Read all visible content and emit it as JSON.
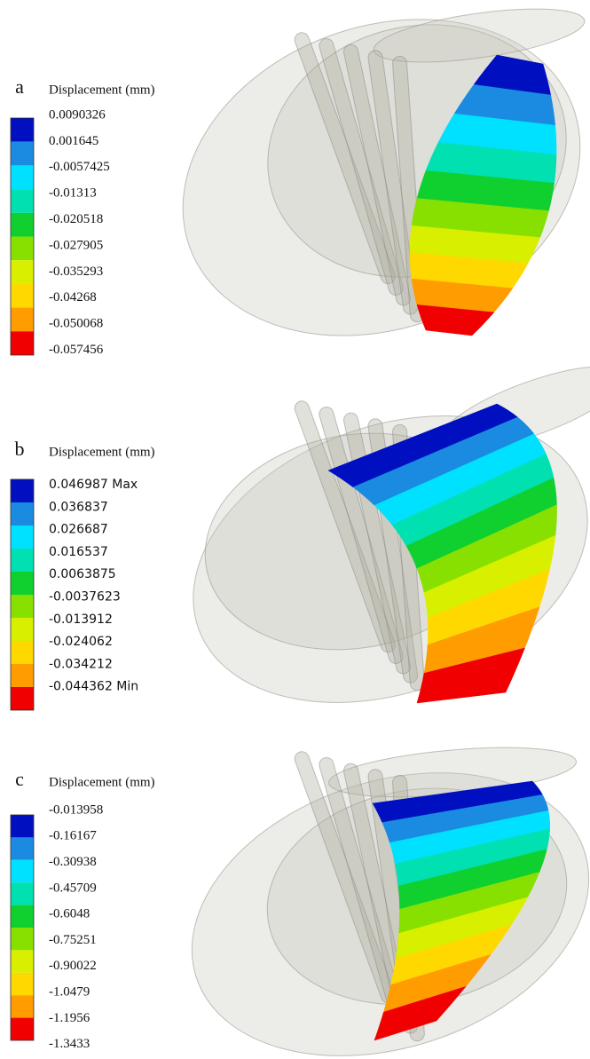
{
  "panels": [
    {
      "label": "a",
      "legend_title": "Displacement (mm)",
      "levels": [
        "0.0090326",
        "0.001645",
        "-0.0057425",
        "-0.01313",
        "-0.020518",
        "-0.027905",
        "-0.035293",
        "-0.04268",
        "-0.050068",
        "-0.057456"
      ]
    },
    {
      "label": "b",
      "legend_title": "Displacement (mm)",
      "levels": [
        "0.046987 Max",
        "0.036837",
        "0.026687",
        "0.016537",
        "0.0063875",
        "-0.0037623",
        "-0.013912",
        "-0.024062",
        "-0.034212",
        "-0.044362 Min"
      ]
    },
    {
      "label": "c",
      "legend_title": "Displacement (mm)",
      "levels": [
        "-0.013958",
        "-0.16167",
        "-0.30938",
        "-0.45709",
        "-0.6048",
        "-0.75251",
        "-0.90022",
        "-1.0479",
        "-1.1956",
        "-1.3433"
      ]
    }
  ]
}
